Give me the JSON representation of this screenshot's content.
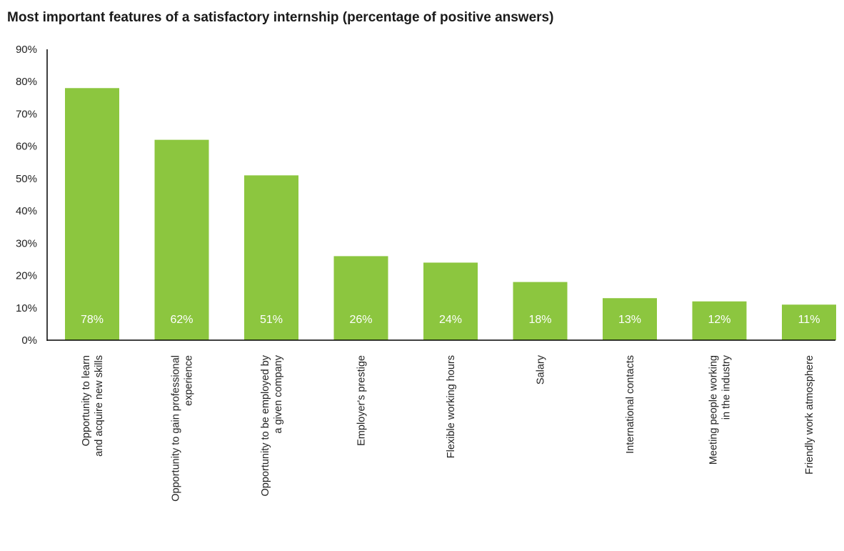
{
  "chart_data": {
    "type": "bar",
    "title": "Most important features of a satisfactory internship (percentage of positive answers)",
    "categories": [
      [
        "Opportunity to learn",
        "and acquire new skills"
      ],
      [
        "Opportunity to gain professional",
        "experience"
      ],
      [
        "Opportunity to be employed by",
        "a given company"
      ],
      [
        "Employer's prestige"
      ],
      [
        "Flexible working hours"
      ],
      [
        "Salary"
      ],
      [
        "International contacts"
      ],
      [
        "Meeting people working",
        "in the industry"
      ],
      [
        "Friendly work atmosphere"
      ]
    ],
    "values": [
      78,
      62,
      51,
      26,
      24,
      18,
      13,
      12,
      11
    ],
    "data_labels": [
      "78%",
      "62%",
      "51%",
      "26%",
      "24%",
      "18%",
      "13%",
      "12%",
      "11%"
    ],
    "yticks": [
      "0%",
      "10%",
      "20%",
      "30%",
      "40%",
      "50%",
      "60%",
      "70%",
      "80%",
      "90%"
    ],
    "ylim": [
      0,
      90
    ],
    "xlabel": "",
    "ylabel": "",
    "grid": false,
    "bar_color": "#8cc63f"
  }
}
